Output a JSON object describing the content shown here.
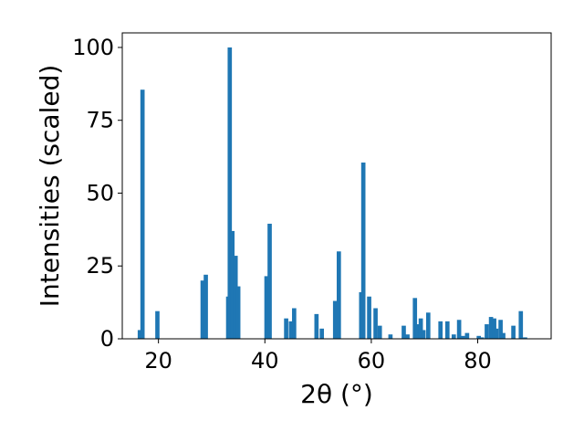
{
  "chart_data": {
    "type": "bar",
    "title": "",
    "xlabel": "2θ (°)",
    "ylabel": "Intensities (scaled)",
    "xlim": [
      13.2,
      93.8
    ],
    "ylim": [
      0,
      105
    ],
    "xticks": [
      20,
      40,
      60,
      80
    ],
    "yticks": [
      0,
      25,
      50,
      75,
      100
    ],
    "bar_color": "#1f77b4",
    "bar_width_deg": 0.8,
    "grid": false,
    "legend": "none",
    "x": [
      16.5,
      17.0,
      19.8,
      28.3,
      28.9,
      33.1,
      33.4,
      33.9,
      34.5,
      35.0,
      40.3,
      40.9,
      44.0,
      44.9,
      45.5,
      49.7,
      50.7,
      53.2,
      53.9,
      58.1,
      58.5,
      59.6,
      60.8,
      61.6,
      63.6,
      66.1,
      66.8,
      68.2,
      68.8,
      69.3,
      69.8,
      70.7,
      73.0,
      74.3,
      75.5,
      76.5,
      77.2,
      78.0,
      80.2,
      80.8,
      81.7,
      82.5,
      83.1,
      83.5,
      84.3,
      84.8,
      86.7,
      88.1,
      88.9
    ],
    "values": [
      3,
      85.5,
      9.5,
      20,
      22,
      14.5,
      100,
      37,
      28.5,
      18,
      21.5,
      39.5,
      7,
      6,
      10.5,
      8.5,
      3.5,
      13,
      30,
      16,
      60.5,
      14.5,
      10.5,
      4.5,
      1.5,
      4.5,
      1.5,
      14,
      5,
      7,
      3,
      9,
      6,
      6,
      1.5,
      6.5,
      1,
      2,
      1,
      0.5,
      5,
      7.5,
      7,
      3.5,
      6.5,
      2,
      4.5,
      9.5,
      0.5
    ]
  }
}
